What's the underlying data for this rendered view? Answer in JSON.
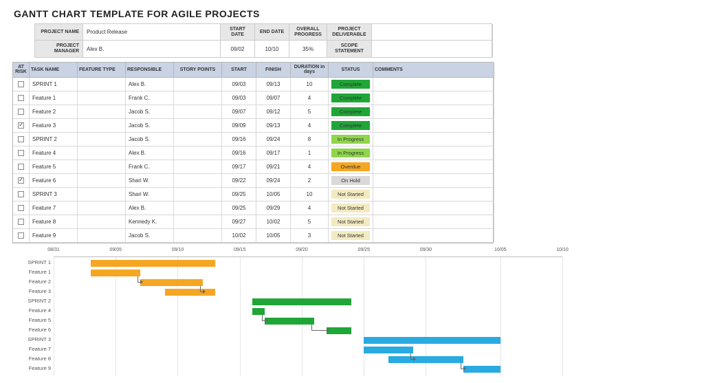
{
  "title": "GANTT CHART TEMPLATE FOR AGILE PROJECTS",
  "info": {
    "labels": {
      "project_name": "PROJECT NAME",
      "project_manager": "PROJECT MANAGER",
      "start": "START DATE",
      "end": "END DATE",
      "progress": "OVERALL PROGRESS",
      "deliverable": "PROJECT DELIVERABLE"
    },
    "project_name": "Product Release",
    "project_manager": "Alex B.",
    "start": "09/02",
    "end": "10/10",
    "progress": "35%",
    "deliverable": "SCOPE STATEMENT"
  },
  "columns": [
    "AT RISK",
    "TASK NAME",
    "FEATURE TYPE",
    "RESPONSIBLE",
    "STORY POINTS",
    "START",
    "FINISH",
    "DURATION in days",
    "STATUS",
    "COMMENTS"
  ],
  "status_colors": {
    "Complete": "#20a637",
    "In Progress": "#8fd64c",
    "Overdue": "#f5a623",
    "On Hold": "#d9d9d9",
    "Not Started": "#f3eac0"
  },
  "rows": [
    {
      "risk": false,
      "name": "SPRINT 1",
      "type": "",
      "resp": "Alex B.",
      "pts": "",
      "start": "09/03",
      "finish": "09/13",
      "dur": "10",
      "status": "Complete",
      "cmt": "",
      "sprint": 1
    },
    {
      "risk": false,
      "name": "Feature 1",
      "type": "",
      "resp": "Frank C.",
      "pts": "",
      "start": "09/03",
      "finish": "09/07",
      "dur": "4",
      "status": "Complete",
      "cmt": ""
    },
    {
      "risk": false,
      "name": "Feature 2",
      "type": "",
      "resp": "Jacob S.",
      "pts": "",
      "start": "09/07",
      "finish": "09/12",
      "dur": "5",
      "status": "Complete",
      "cmt": ""
    },
    {
      "risk": true,
      "name": "Feature 3",
      "type": "",
      "resp": "Jacob S.",
      "pts": "",
      "start": "09/09",
      "finish": "09/13",
      "dur": "4",
      "status": "Complete",
      "cmt": ""
    },
    {
      "risk": false,
      "name": "SPRINT 2",
      "type": "",
      "resp": "Jacob S.",
      "pts": "",
      "start": "09/16",
      "finish": "09/24",
      "dur": "8",
      "status": "In Progress",
      "cmt": "",
      "sprint": 1
    },
    {
      "risk": false,
      "name": "Feature 4",
      "type": "",
      "resp": "Alex B.",
      "pts": "",
      "start": "09/16",
      "finish": "09/17",
      "dur": "1",
      "status": "In Progress",
      "cmt": ""
    },
    {
      "risk": false,
      "name": "Feature 5",
      "type": "",
      "resp": "Frank C.",
      "pts": "",
      "start": "09/17",
      "finish": "09/21",
      "dur": "4",
      "status": "Overdue",
      "cmt": ""
    },
    {
      "risk": true,
      "name": "Feature 6",
      "type": "",
      "resp": "Shari W.",
      "pts": "",
      "start": "09/22",
      "finish": "09/24",
      "dur": "2",
      "status": "On Hold",
      "cmt": ""
    },
    {
      "risk": false,
      "name": "SPRINT 3",
      "type": "",
      "resp": "Shari W.",
      "pts": "",
      "start": "09/25",
      "finish": "10/05",
      "dur": "10",
      "status": "Not Started",
      "cmt": "",
      "sprint": 2
    },
    {
      "risk": false,
      "name": "Feature 7",
      "type": "",
      "resp": "Alex B.",
      "pts": "",
      "start": "09/25",
      "finish": "09/29",
      "dur": "4",
      "status": "Not Started",
      "cmt": ""
    },
    {
      "risk": false,
      "name": "Feature 8",
      "type": "",
      "resp": "Kennedy K.",
      "pts": "",
      "start": "09/27",
      "finish": "10/02",
      "dur": "5",
      "status": "Not Started",
      "cmt": ""
    },
    {
      "risk": false,
      "name": "Feature 9",
      "type": "",
      "resp": "Jacob S.",
      "pts": "",
      "start": "10/02",
      "finish": "10/05",
      "dur": "3",
      "status": "Not Started",
      "cmt": ""
    }
  ],
  "gantt": {
    "axis_min": "08/31",
    "axis_max": "10/10",
    "ticks": [
      "08/31",
      "09/05",
      "09/10",
      "09/15",
      "09/20",
      "09/25",
      "09/30",
      "10/05",
      "10/10"
    ],
    "bar_colors": {
      "sprint1": "#f5a623",
      "sprint2": "#20a637",
      "sprint3": "#29abe2"
    },
    "tasks": [
      {
        "label": "SPRINT 1",
        "start": "09/03",
        "end": "09/13",
        "color": "sprint1"
      },
      {
        "label": "Feature 1",
        "start": "09/03",
        "end": "09/07",
        "color": "sprint1",
        "arrow_to": 2
      },
      {
        "label": "Feature 2",
        "start": "09/07",
        "end": "09/12",
        "color": "sprint1",
        "arrow_to": 3
      },
      {
        "label": "Feature 3",
        "start": "09/09",
        "end": "09/13",
        "color": "sprint1"
      },
      {
        "label": "SPRINT 2",
        "start": "09/16",
        "end": "09/24",
        "color": "sprint2"
      },
      {
        "label": "Feature 4",
        "start": "09/16",
        "end": "09/17",
        "color": "sprint2",
        "arrow_to": 6
      },
      {
        "label": "Feature 5",
        "start": "09/17",
        "end": "09/21",
        "color": "sprint2",
        "arrow_to": 7
      },
      {
        "label": "Feature 6",
        "start": "09/22",
        "end": "09/24",
        "color": "sprint2"
      },
      {
        "label": "SPRINT 3",
        "start": "09/25",
        "end": "10/05",
        "color": "sprint3"
      },
      {
        "label": "Feature 7",
        "start": "09/25",
        "end": "09/29",
        "color": "sprint3",
        "arrow_to": 10
      },
      {
        "label": "Feature 8",
        "start": "09/27",
        "end": "10/02",
        "color": "sprint3",
        "arrow_to": 11
      },
      {
        "label": "Feature 9",
        "start": "10/02",
        "end": "10/05",
        "color": "sprint3"
      }
    ]
  }
}
